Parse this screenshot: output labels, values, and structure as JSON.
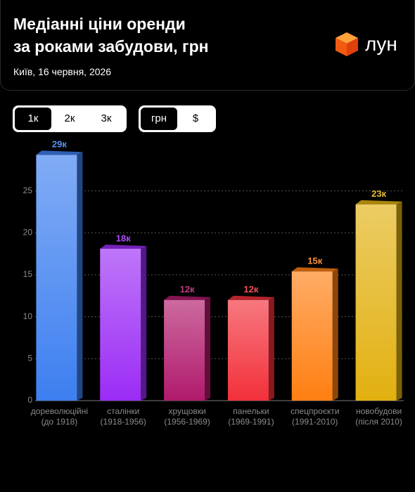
{
  "header": {
    "title": [
      "Медіанні ціни оренди",
      "за роками забудови, грн"
    ],
    "subtitle": "Київ, 16 червня, 2026",
    "logo": "лун"
  },
  "controls": {
    "rooms": [
      "1к",
      "2к",
      "3к"
    ],
    "currency": [
      "грн",
      "$"
    ]
  },
  "chart_data": {
    "type": "bar",
    "categories": [
      [
        "дореволюційні",
        "(до 1918)"
      ],
      [
        "сталінки",
        "(1918-1956)"
      ],
      [
        "хрущовки",
        "(1956-1969)"
      ],
      [
        "панельки",
        "(1969-1991)"
      ],
      [
        "спецпроєкти",
        "(1991-2010)"
      ],
      [
        "новобудови",
        "(після 2010)"
      ]
    ],
    "values": [
      29.3,
      18.1,
      12,
      12,
      15.4,
      23.4
    ],
    "value_labels": [
      "29к",
      "18к",
      "12к",
      "12к",
      "15к",
      "23к"
    ],
    "colors": [
      "#3d7ff0",
      "#9b2cf5",
      "#b01a6c",
      "#f2303a",
      "#ff7f12",
      "#e2b010"
    ],
    "ylim": [
      0,
      31
    ],
    "yticks": [
      0,
      5,
      10,
      15,
      20,
      25
    ],
    "grid": true
  }
}
